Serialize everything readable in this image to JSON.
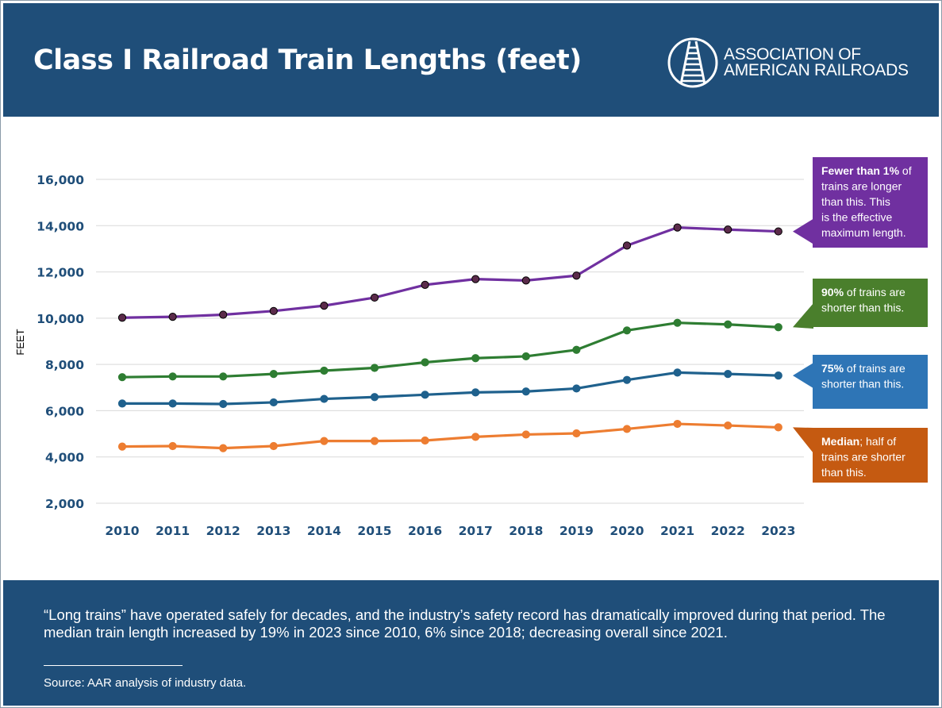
{
  "header": {
    "title": "Class I Railroad Train Lengths (feet)",
    "logo_line1": "ASSOCIATION OF",
    "logo_line2": "AMERICAN RAILROADS",
    "logo_icon": "railroad-track-icon"
  },
  "chart_data": {
    "type": "line",
    "title": "Class I Railroad Train Lengths (feet)",
    "ylabel": "FEET",
    "xlabel": "",
    "ylim": [
      2000,
      16000
    ],
    "yticks": [
      2000,
      4000,
      6000,
      8000,
      10000,
      12000,
      14000,
      16000
    ],
    "ytick_labels": [
      "2,000",
      "4,000",
      "6,000",
      "8,000",
      "10,000",
      "12,000",
      "14,000",
      "16,000"
    ],
    "grid": true,
    "categories": [
      "2010",
      "2011",
      "2012",
      "2013",
      "2014",
      "2015",
      "2016",
      "2017",
      "2018",
      "2019",
      "2020",
      "2021",
      "2022",
      "2023"
    ],
    "series": [
      {
        "color": "#7030a0",
        "values": [
          10020,
          10060,
          10150,
          10310,
          10540,
          10890,
          11440,
          11690,
          11630,
          11840,
          13140,
          13920,
          13830,
          13750
        ],
        "callout": {
          "bold": "Fewer than 1%",
          "rest": [
            " of",
            "trains are longer",
            "than this. This",
            "is the effective",
            "maximum length."
          ]
        }
      },
      {
        "color": "#2e7d32",
        "values": [
          7450,
          7480,
          7480,
          7590,
          7730,
          7850,
          8090,
          8270,
          8350,
          8630,
          9470,
          9800,
          9730,
          9610
        ],
        "callout": {
          "bold": "90%",
          "rest": [
            " of trains are",
            "shorter than this."
          ]
        }
      },
      {
        "color": "#1f618d",
        "values": [
          6310,
          6310,
          6290,
          6360,
          6510,
          6590,
          6690,
          6790,
          6830,
          6960,
          7330,
          7650,
          7590,
          7520
        ],
        "callout": {
          "bold": "75%",
          "rest": [
            " of trains are",
            "shorter than this."
          ]
        }
      },
      {
        "color": "#ed7d31",
        "values": [
          4450,
          4470,
          4380,
          4470,
          4690,
          4690,
          4710,
          4870,
          4970,
          5020,
          5210,
          5430,
          5360,
          5280
        ],
        "callout": {
          "bold": "Median",
          "rest": [
            "; half of",
            "trains are shorter",
            "than this."
          ]
        }
      }
    ]
  },
  "callout_colors": [
    "#7030a0",
    "#4a7f2c",
    "#2e75b6",
    "#c55a11"
  ],
  "footer": {
    "note": "“Long trains” have operated safely for decades, and the industry’s safety record has dramatically improved during that period. The median train length increased by 19% in 2023 since 2010, 6% since 2018; decreasing overall since 2021.",
    "source": "Source: AAR analysis of industry data."
  }
}
